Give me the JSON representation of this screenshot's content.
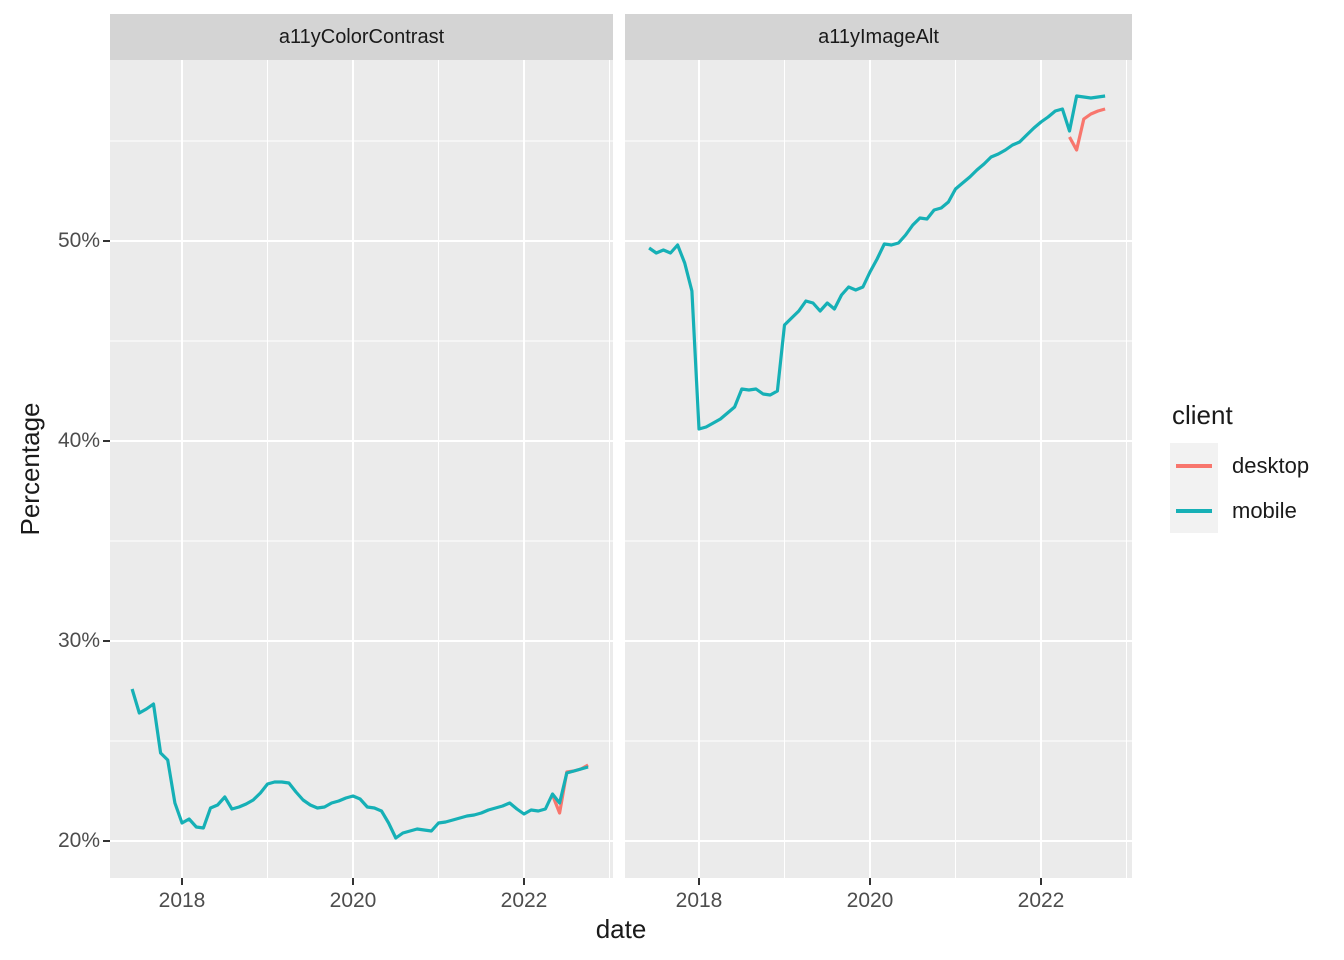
{
  "colors": {
    "background": "#ffffff",
    "panel_bg": "#ebebeb",
    "strip_bg": "#d4d4d4",
    "grid": "#ffffff",
    "tick_mark": "#333333",
    "tick_text": "#4d4d4d",
    "desktop": "#F8766D",
    "mobile": "#16b0b6"
  },
  "chart_data": {
    "type": "line",
    "title": "",
    "xlabel": "date",
    "ylabel": "Percentage",
    "x": {
      "major_ticks": [
        2018,
        2020,
        2022
      ],
      "tick_labels": [
        "2018",
        "2020",
        "2022"
      ],
      "minor_ticks": [
        2019,
        2021,
        2023
      ],
      "domain_years": [
        2017.15,
        2023.03
      ]
    },
    "y": {
      "major_ticks": [
        20,
        30,
        40,
        50
      ],
      "tick_labels": [
        "20%",
        "30%",
        "40%",
        "50%"
      ],
      "minor_ticks": [
        25,
        35,
        45,
        55
      ],
      "domain": [
        18.15,
        59.05
      ],
      "unit": "percent"
    },
    "legend": {
      "title": "client",
      "position": "right",
      "entries": [
        {
          "label": "desktop",
          "color": "#F8766D"
        },
        {
          "label": "mobile",
          "color": "#16b0b6"
        }
      ]
    },
    "facets": [
      {
        "label": "a11yColorContrast",
        "series": [
          {
            "name": "desktop",
            "color": "#F8766D",
            "start": "2022-05",
            "cadence": "monthly",
            "values": [
              22.3,
              21.4,
              23.45,
              23.5,
              23.6,
              23.8
            ]
          },
          {
            "name": "mobile",
            "color": "#16b0b6",
            "start": "2017-06",
            "cadence": "monthly",
            "values": [
              27.6,
              26.4,
              26.6,
              26.85,
              24.4,
              24.05,
              21.9,
              20.9,
              21.1,
              20.7,
              20.65,
              21.65,
              21.8,
              22.2,
              21.6,
              21.7,
              21.85,
              22.05,
              22.4,
              22.85,
              22.95,
              22.95,
              22.9,
              22.45,
              22.05,
              21.8,
              21.65,
              21.7,
              21.9,
              22.0,
              22.15,
              22.25,
              22.1,
              21.7,
              21.65,
              21.5,
              20.9,
              20.15,
              20.4,
              20.5,
              20.6,
              20.55,
              20.5,
              20.9,
              20.95,
              21.05,
              21.15,
              21.25,
              21.3,
              21.4,
              21.55,
              21.65,
              21.75,
              21.9,
              21.6,
              21.35,
              21.55,
              21.5,
              21.6,
              22.35,
              21.9,
              23.4,
              23.5,
              23.6,
              23.7
            ]
          }
        ]
      },
      {
        "label": "a11yImageAlt",
        "series": [
          {
            "name": "desktop",
            "color": "#F8766D",
            "start": "2022-05",
            "cadence": "monthly",
            "values": [
              55.2,
              54.55,
              56.1,
              56.35,
              56.5,
              56.6
            ]
          },
          {
            "name": "mobile",
            "color": "#16b0b6",
            "start": "2017-06",
            "cadence": "monthly",
            "values": [
              49.65,
              49.4,
              49.55,
              49.4,
              49.8,
              48.9,
              47.5,
              40.6,
              40.7,
              40.9,
              41.1,
              41.4,
              41.7,
              42.6,
              42.55,
              42.6,
              42.35,
              42.3,
              42.5,
              45.8,
              46.15,
              46.5,
              47.0,
              46.9,
              46.5,
              46.9,
              46.6,
              47.3,
              47.7,
              47.55,
              47.7,
              48.45,
              49.1,
              49.85,
              49.8,
              49.9,
              50.3,
              50.8,
              51.15,
              51.1,
              51.55,
              51.65,
              51.95,
              52.6,
              52.9,
              53.2,
              53.55,
              53.85,
              54.2,
              54.35,
              54.55,
              54.8,
              54.95,
              55.3,
              55.65,
              55.95,
              56.2,
              56.5,
              56.6,
              55.5,
              57.25,
              57.2,
              57.15,
              57.2,
              57.25
            ]
          }
        ]
      }
    ]
  }
}
